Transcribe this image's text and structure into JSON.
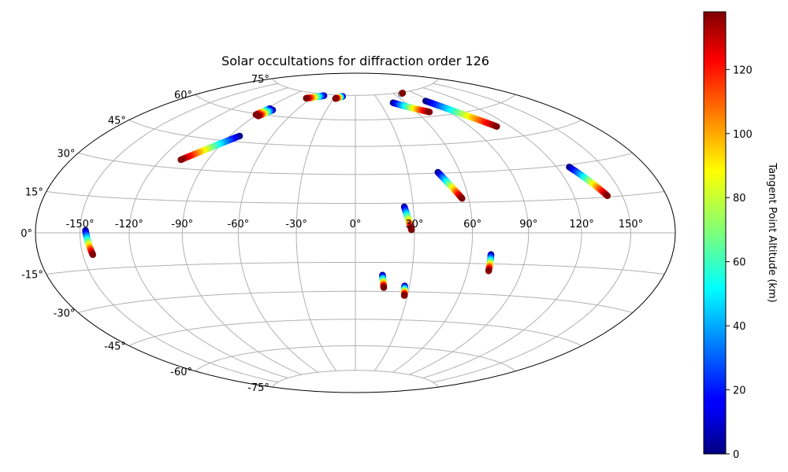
{
  "chart_data": {
    "type": "scatter",
    "projection": "hammer",
    "title": "Solar occultations for diffraction order 126",
    "colorbar": {
      "label": "Tangent Point Altitude (km)",
      "colormap": "jet",
      "range": [
        0,
        138
      ],
      "ticks": [
        0,
        20,
        40,
        60,
        80,
        100,
        120
      ]
    },
    "lon_ticks": [
      -150,
      -120,
      -90,
      -60,
      -30,
      0,
      30,
      60,
      90,
      120,
      150
    ],
    "lon_tick_labels": [
      "-150°",
      "-120°",
      "-90°",
      "-60°",
      "-30°",
      "0°",
      "30°",
      "60°",
      "90°",
      "120°",
      "150°"
    ],
    "lat_ticks": [
      -75,
      -60,
      -45,
      -30,
      -15,
      0,
      15,
      30,
      45,
      60,
      75
    ],
    "lat_tick_labels": [
      "-75°",
      "-60°",
      "-45°",
      "-30°",
      "-15°",
      "0°",
      "15°",
      "30°",
      "45°",
      "60°",
      "75°"
    ],
    "grid": true,
    "tracks": [
      {
        "start": [
          -146.5,
          1.0
        ],
        "end": [
          -143.7,
          -9.0
        ]
      },
      {
        "start": [
          14.5,
          -21.5
        ],
        "end": [
          15.8,
          -28.0
        ]
      },
      {
        "start": [
          27.3,
          -27.0
        ],
        "end": [
          28.2,
          -32.0
        ]
      },
      {
        "start": [
          25.3,
          13.2
        ],
        "end": [
          28.5,
          1.5
        ]
      },
      {
        "start": [
          70.7,
          -10.5
        ],
        "end": [
          71.5,
          -18.5
        ]
      },
      {
        "start": [
          47.2,
          30.5
        ],
        "end": [
          56.5,
          17.0
        ]
      },
      {
        "start": [
          128.0,
          29.0
        ],
        "end": [
          140.5,
          15.5
        ]
      },
      {
        "start": [
          -83.0,
          48.0
        ],
        "end": [
          -107.0,
          34.0
        ]
      },
      {
        "start": [
          -87.0,
          63.5
        ],
        "end": [
          -91.0,
          59.5
        ]
      },
      {
        "start": [
          -82.5,
          63.0
        ],
        "end": [
          -87.5,
          59.0
        ]
      },
      {
        "start": [
          -47.0,
          74.0
        ],
        "end": [
          -66.0,
          71.5
        ]
      },
      {
        "start": [
          -19.0,
          74.2
        ],
        "end": [
          -27.5,
          72.7
        ]
      },
      {
        "start": [
          45.5,
          69.5
        ],
        "end": [
          72.0,
          62.5
        ]
      },
      {
        "start": [
          85.0,
          68.5
        ],
        "end": [
          110.0,
          51.0
        ]
      },
      {
        "start": [
          71.2,
          74.2
        ],
        "end": [
          74.8,
          74.5
        ]
      }
    ]
  }
}
